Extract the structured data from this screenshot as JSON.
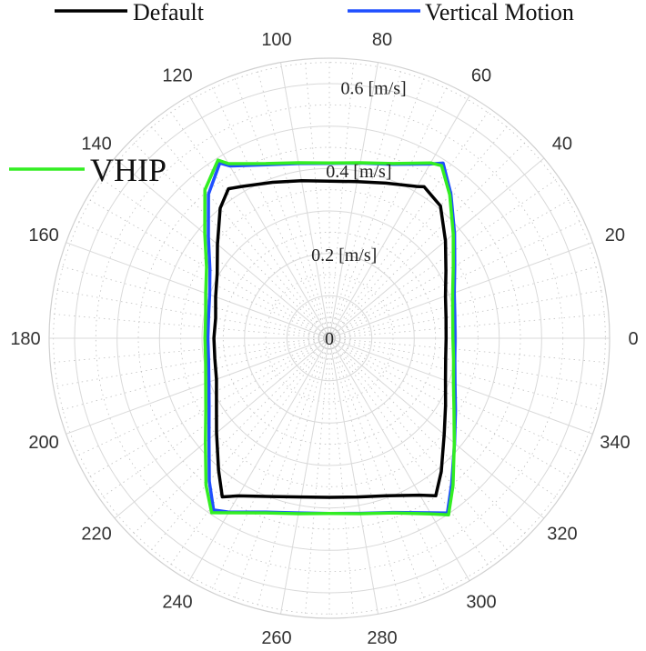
{
  "chart_data": {
    "type": "polar-line",
    "angle_unit": "deg",
    "angle_ticks": [
      0,
      20,
      40,
      60,
      80,
      100,
      120,
      140,
      160,
      180,
      200,
      220,
      240,
      260,
      280,
      300,
      320,
      340
    ],
    "radial_ticks": [
      {
        "value": 0,
        "label": "0"
      },
      {
        "value": 0.2,
        "label": "0.2 [m/s]"
      },
      {
        "value": 0.4,
        "label": "0.4 [m/s]"
      },
      {
        "value": 0.6,
        "label": "0.6 [m/s]"
      }
    ],
    "rlim": [
      0,
      0.66
    ],
    "grid": true,
    "series": [
      {
        "name": "Default",
        "color": "#000000",
        "points": [
          [
            0,
            0.275
          ],
          [
            10,
            0.279
          ],
          [
            20,
            0.291
          ],
          [
            30,
            0.317
          ],
          [
            40,
            0.357
          ],
          [
            50,
            0.407
          ],
          [
            58,
            0.421
          ],
          [
            60,
            0.413
          ],
          [
            70,
            0.389
          ],
          [
            80,
            0.375
          ],
          [
            90,
            0.37
          ],
          [
            100,
            0.377
          ],
          [
            110,
            0.391
          ],
          [
            120,
            0.413
          ],
          [
            124,
            0.425
          ],
          [
            130,
            0.4
          ],
          [
            140,
            0.344
          ],
          [
            150,
            0.305
          ],
          [
            160,
            0.285
          ],
          [
            170,
            0.272
          ],
          [
            180,
            0.272
          ],
          [
            190,
            0.274
          ],
          [
            200,
            0.283
          ],
          [
            210,
            0.307
          ],
          [
            220,
            0.347
          ],
          [
            230,
            0.406
          ],
          [
            236,
            0.451
          ],
          [
            240,
            0.429
          ],
          [
            250,
            0.397
          ],
          [
            260,
            0.38
          ],
          [
            270,
            0.375
          ],
          [
            280,
            0.38
          ],
          [
            290,
            0.395
          ],
          [
            300,
            0.427
          ],
          [
            304,
            0.448
          ],
          [
            310,
            0.41
          ],
          [
            320,
            0.353
          ],
          [
            330,
            0.316
          ],
          [
            340,
            0.291
          ],
          [
            350,
            0.278
          ]
        ]
      },
      {
        "name": "Vertical Motion",
        "color": "#1f4fff",
        "points": [
          [
            0,
            0.296
          ],
          [
            10,
            0.3
          ],
          [
            20,
            0.313
          ],
          [
            30,
            0.341
          ],
          [
            40,
            0.385
          ],
          [
            50,
            0.445
          ],
          [
            57,
            0.492
          ],
          [
            60,
            0.474
          ],
          [
            70,
            0.436
          ],
          [
            80,
            0.419
          ],
          [
            90,
            0.412
          ],
          [
            100,
            0.418
          ],
          [
            110,
            0.435
          ],
          [
            120,
            0.469
          ],
          [
            122,
            0.487
          ],
          [
            130,
            0.443
          ],
          [
            140,
            0.372
          ],
          [
            150,
            0.325
          ],
          [
            160,
            0.3
          ],
          [
            170,
            0.289
          ],
          [
            180,
            0.286
          ],
          [
            190,
            0.289
          ],
          [
            200,
            0.302
          ],
          [
            210,
            0.327
          ],
          [
            220,
            0.37
          ],
          [
            230,
            0.44
          ],
          [
            236,
            0.488
          ],
          [
            240,
            0.473
          ],
          [
            250,
            0.436
          ],
          [
            260,
            0.418
          ],
          [
            270,
            0.413
          ],
          [
            280,
            0.419
          ],
          [
            290,
            0.437
          ],
          [
            300,
            0.475
          ],
          [
            304,
            0.497
          ],
          [
            310,
            0.448
          ],
          [
            320,
            0.385
          ],
          [
            330,
            0.343
          ],
          [
            340,
            0.315
          ],
          [
            350,
            0.3
          ]
        ]
      },
      {
        "name": "VHIP",
        "color": "#33ee22",
        "points": [
          [
            0,
            0.291
          ],
          [
            10,
            0.295
          ],
          [
            20,
            0.309
          ],
          [
            30,
            0.337
          ],
          [
            40,
            0.381
          ],
          [
            50,
            0.441
          ],
          [
            57,
            0.485
          ],
          [
            60,
            0.477
          ],
          [
            70,
            0.438
          ],
          [
            80,
            0.42
          ],
          [
            90,
            0.413
          ],
          [
            100,
            0.42
          ],
          [
            110,
            0.438
          ],
          [
            120,
            0.475
          ],
          [
            122,
            0.495
          ],
          [
            130,
            0.456
          ],
          [
            140,
            0.383
          ],
          [
            150,
            0.334
          ],
          [
            160,
            0.31
          ],
          [
            170,
            0.296
          ],
          [
            180,
            0.293
          ],
          [
            190,
            0.296
          ],
          [
            200,
            0.31
          ],
          [
            210,
            0.336
          ],
          [
            220,
            0.381
          ],
          [
            230,
            0.452
          ],
          [
            236,
            0.496
          ],
          [
            240,
            0.475
          ],
          [
            250,
            0.438
          ],
          [
            260,
            0.42
          ],
          [
            270,
            0.413
          ],
          [
            280,
            0.42
          ],
          [
            290,
            0.438
          ],
          [
            300,
            0.478
          ],
          [
            304,
            0.502
          ],
          [
            310,
            0.453
          ],
          [
            320,
            0.384
          ],
          [
            330,
            0.339
          ],
          [
            340,
            0.311
          ],
          [
            350,
            0.297
          ]
        ]
      }
    ]
  }
}
